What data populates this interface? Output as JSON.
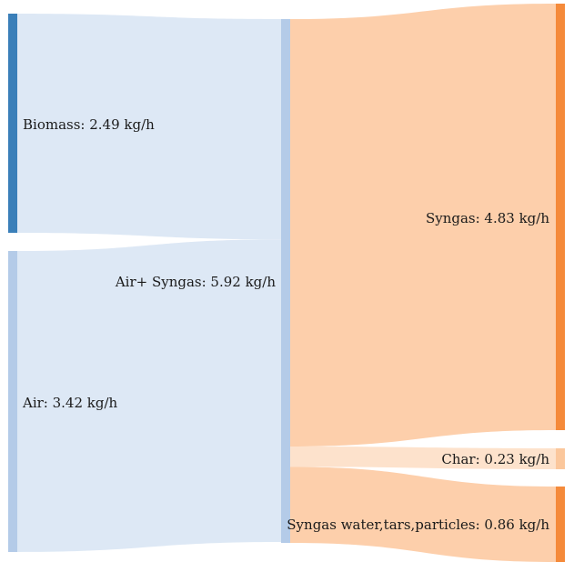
{
  "chart_data": {
    "type": "sankey",
    "nodes": [
      {
        "id": "biomass",
        "label": "Biomass: 2.49 kg/h",
        "value": 2.49,
        "color": "#3a7fb9"
      },
      {
        "id": "air",
        "label": "Air: 3.42 kg/h",
        "value": 3.42,
        "color": "#b4cbe8"
      },
      {
        "id": "air_syngas",
        "label": "Air+ Syngas: 5.92 kg/h",
        "value": 5.92,
        "color": "#b4cbe8"
      },
      {
        "id": "syngas",
        "label": "Syngas: 4.83 kg/h",
        "value": 4.83,
        "color": "#f58a3a"
      },
      {
        "id": "char",
        "label": "Char: 0.23 kg/h",
        "value": 0.23,
        "color": "#fbc79c"
      },
      {
        "id": "syngas_water",
        "label": "Syngas water,tars,particles: 0.86 kg/h",
        "value": 0.86,
        "color": "#f58a3a"
      }
    ],
    "links": [
      {
        "source": "biomass",
        "target": "air_syngas",
        "value": 2.49
      },
      {
        "source": "air",
        "target": "air_syngas",
        "value": 3.42
      },
      {
        "source": "air_syngas",
        "target": "syngas",
        "value": 4.83
      },
      {
        "source": "air_syngas",
        "target": "char",
        "value": 0.23
      },
      {
        "source": "air_syngas",
        "target": "syngas_water",
        "value": 0.86
      }
    ],
    "link_colors": {
      "input": "#dde8f5",
      "output": "#fdcfab",
      "char": "#fde2cc"
    },
    "unit": "kg/h"
  }
}
